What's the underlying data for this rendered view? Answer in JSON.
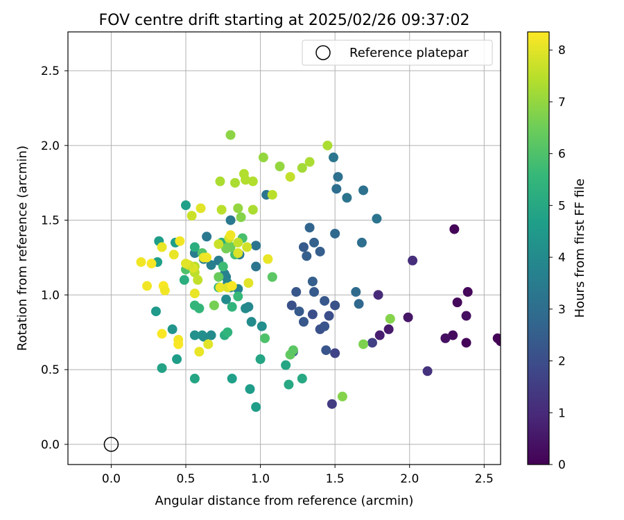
{
  "chart_data": {
    "type": "scatter",
    "title": "FOV centre drift starting at 2025/02/26 09:37:02",
    "xlabel": "Angular distance from reference (arcmin)",
    "ylabel": "Rotation from reference (arcmin)",
    "xlim": [
      -0.29,
      2.61
    ],
    "ylim": [
      -0.135,
      2.76
    ],
    "xticks": [
      "0.0",
      "0.5",
      "1.0",
      "1.5",
      "2.0",
      "2.5"
    ],
    "xtick_values": [
      0,
      0.5,
      1.0,
      1.5,
      2.0,
      2.5
    ],
    "yticks": [
      "0.0",
      "0.5",
      "1.0",
      "1.5",
      "2.0",
      "2.5"
    ],
    "ytick_values": [
      0,
      0.5,
      1.0,
      1.5,
      2.0,
      2.5
    ],
    "grid": true,
    "legend": {
      "placement": "top-right",
      "label": "Reference platepar"
    },
    "reference_point": {
      "x": 0,
      "y": 0
    },
    "colorbar": {
      "label": "Hours from first FF file",
      "colormap": "viridis",
      "range": [
        0,
        8.35
      ],
      "ticks": [
        "0",
        "1",
        "2",
        "3",
        "4",
        "5",
        "6",
        "7",
        "8"
      ],
      "tick_values": [
        0,
        1,
        2,
        3,
        4,
        5,
        6,
        7,
        8
      ]
    },
    "series": [
      {
        "columns": [
          "x",
          "y",
          "hours"
        ],
        "points": [
          [
            2.3,
            1.44,
            0.1
          ],
          [
            2.39,
            1.02,
            0.15
          ],
          [
            2.32,
            0.95,
            0.2
          ],
          [
            2.38,
            0.86,
            0.3
          ],
          [
            2.29,
            0.73,
            0.25
          ],
          [
            2.24,
            0.71,
            0.35
          ],
          [
            2.38,
            0.68,
            0.1
          ],
          [
            2.59,
            0.71,
            0.05
          ],
          [
            2.61,
            0.69,
            0.05
          ],
          [
            1.99,
            0.85,
            0.5
          ],
          [
            1.86,
            0.77,
            0.6
          ],
          [
            1.8,
            0.73,
            0.7
          ],
          [
            1.79,
            1.0,
            1.0
          ],
          [
            2.02,
            1.23,
            1.1
          ],
          [
            2.12,
            0.49,
            1.2
          ],
          [
            1.75,
            0.68,
            1.6
          ],
          [
            1.5,
            0.61,
            1.7
          ],
          [
            1.48,
            0.27,
            1.5
          ],
          [
            1.22,
            0.62,
            2.2
          ],
          [
            1.29,
            0.82,
            2.3
          ],
          [
            1.21,
            0.93,
            2.1
          ],
          [
            1.26,
            0.89,
            2.4
          ],
          [
            1.24,
            1.02,
            2.3
          ],
          [
            1.35,
            0.87,
            2.0
          ],
          [
            1.4,
            0.77,
            2.1
          ],
          [
            1.43,
            0.79,
            2.2
          ],
          [
            1.46,
            0.86,
            2.0
          ],
          [
            1.5,
            0.93,
            2.1
          ],
          [
            1.43,
            0.96,
            2.3
          ],
          [
            1.36,
            1.02,
            2.4
          ],
          [
            1.35,
            1.09,
            2.5
          ],
          [
            1.44,
            0.63,
            2.2
          ],
          [
            1.31,
            1.26,
            2.5
          ],
          [
            1.29,
            1.32,
            2.4
          ],
          [
            1.36,
            1.35,
            2.6
          ],
          [
            1.4,
            1.29,
            2.5
          ],
          [
            1.33,
            1.45,
            2.7
          ],
          [
            1.5,
            1.41,
            2.8
          ],
          [
            1.64,
            1.02,
            2.9
          ],
          [
            1.66,
            0.94,
            2.8
          ],
          [
            1.68,
            1.35,
            3.0
          ],
          [
            1.51,
            1.71,
            3.0
          ],
          [
            1.52,
            1.79,
            3.1
          ],
          [
            1.58,
            1.65,
            3.2
          ],
          [
            1.69,
            1.7,
            3.1
          ],
          [
            1.49,
            1.92,
            3.3
          ],
          [
            1.78,
            1.51,
            3.2
          ],
          [
            1.04,
            1.67,
            3.3
          ],
          [
            0.97,
            1.33,
            3.2
          ],
          [
            0.97,
            1.19,
            3.3
          ],
          [
            0.86,
            1.27,
            3.4
          ],
          [
            0.8,
            1.5,
            3.4
          ],
          [
            0.64,
            1.39,
            3.4
          ],
          [
            0.56,
            1.28,
            3.5
          ],
          [
            0.62,
            1.24,
            3.6
          ],
          [
            0.67,
            1.2,
            3.6
          ],
          [
            0.72,
            1.23,
            3.5
          ],
          [
            0.77,
            1.12,
            3.6
          ],
          [
            0.76,
            1.14,
            3.7
          ],
          [
            0.78,
            1.08,
            3.8
          ],
          [
            0.85,
            1.04,
            3.7
          ],
          [
            0.8,
            1.05,
            3.9
          ],
          [
            0.77,
            0.97,
            4.0
          ],
          [
            0.9,
            0.91,
            4.0
          ],
          [
            0.92,
            0.92,
            3.9
          ],
          [
            0.94,
            0.82,
            4.0
          ],
          [
            1.01,
            0.79,
            4.1
          ],
          [
            0.56,
            0.73,
            4.2
          ],
          [
            0.61,
            0.73,
            4.3
          ],
          [
            0.62,
            0.72,
            4.1
          ],
          [
            0.67,
            0.73,
            4.0
          ],
          [
            0.41,
            0.77,
            4.3
          ],
          [
            0.3,
            0.89,
            4.5
          ],
          [
            0.44,
            0.57,
            4.6
          ],
          [
            0.34,
            0.51,
            4.8
          ],
          [
            0.56,
            0.44,
            4.9
          ],
          [
            0.93,
            0.37,
            4.6
          ],
          [
            0.81,
            0.44,
            4.7
          ],
          [
            0.97,
            0.25,
            4.6
          ],
          [
            1.0,
            0.57,
            4.9
          ],
          [
            1.17,
            0.53,
            4.9
          ],
          [
            1.19,
            0.4,
            5.0
          ],
          [
            1.28,
            0.44,
            5.0
          ],
          [
            0.31,
            1.22,
            4.7
          ],
          [
            0.32,
            1.36,
            4.6
          ],
          [
            0.43,
            1.35,
            4.6
          ],
          [
            0.5,
            1.6,
            4.7
          ],
          [
            0.49,
            1.1,
            5.2
          ],
          [
            0.56,
            1.32,
            5.2
          ],
          [
            0.74,
            1.35,
            5.2
          ],
          [
            0.72,
            1.05,
            5.3
          ],
          [
            0.76,
            0.73,
            5.2
          ],
          [
            0.78,
            0.75,
            5.4
          ],
          [
            0.81,
            0.92,
            5.4
          ],
          [
            0.56,
            0.93,
            5.5
          ],
          [
            0.59,
            0.91,
            5.5
          ],
          [
            0.85,
            0.99,
            5.6
          ],
          [
            0.75,
            1.19,
            5.7
          ],
          [
            0.83,
            1.27,
            5.8
          ],
          [
            0.88,
            1.38,
            5.9
          ],
          [
            1.03,
            0.71,
            6.0
          ],
          [
            1.08,
            1.12,
            6.2
          ],
          [
            1.2,
            0.6,
            6.3
          ],
          [
            1.22,
            0.63,
            6.2
          ],
          [
            0.61,
            1.28,
            6.1
          ],
          [
            0.5,
            1.17,
            6.0
          ],
          [
            0.72,
            1.12,
            6.4
          ],
          [
            0.69,
            0.93,
            6.6
          ],
          [
            0.79,
            1.33,
            6.4
          ],
          [
            0.8,
            1.32,
            6.5
          ],
          [
            0.77,
            1.31,
            6.6
          ],
          [
            0.8,
            2.07,
            6.9
          ],
          [
            0.85,
            1.58,
            7.0
          ],
          [
            0.87,
            1.52,
            6.8
          ],
          [
            1.02,
            1.92,
            7.0
          ],
          [
            1.13,
            1.86,
            7.0
          ],
          [
            1.28,
            1.85,
            7.2
          ],
          [
            1.33,
            1.89,
            7.3
          ],
          [
            1.45,
            2.0,
            7.3
          ],
          [
            1.55,
            0.32,
            6.8
          ],
          [
            1.69,
            0.67,
            6.7
          ],
          [
            1.87,
            0.84,
            6.8
          ],
          [
            0.73,
            1.76,
            7.3
          ],
          [
            0.83,
            1.75,
            7.3
          ],
          [
            0.89,
            1.81,
            7.4
          ],
          [
            0.9,
            1.77,
            7.4
          ],
          [
            0.95,
            1.57,
            7.3
          ],
          [
            0.95,
            1.76,
            7.4
          ],
          [
            0.74,
            1.57,
            7.5
          ],
          [
            1.08,
            1.67,
            7.5
          ],
          [
            1.2,
            1.79,
            7.6
          ],
          [
            0.54,
            1.53,
            7.7
          ],
          [
            0.56,
            1.19,
            7.4
          ],
          [
            0.56,
            1.15,
            7.5
          ],
          [
            0.58,
            1.1,
            7.6
          ],
          [
            0.72,
            1.34,
            7.7
          ],
          [
            0.91,
            1.32,
            7.8
          ],
          [
            0.79,
            1.38,
            7.8
          ],
          [
            0.85,
            1.35,
            7.6
          ],
          [
            0.85,
            1.28,
            7.9
          ],
          [
            0.55,
            1.18,
            7.9
          ],
          [
            0.52,
            1.2,
            7.8
          ],
          [
            0.2,
            1.22,
            8.2
          ],
          [
            0.27,
            1.21,
            8.3
          ],
          [
            0.34,
            1.32,
            8.1
          ],
          [
            0.35,
            1.06,
            8.3
          ],
          [
            0.36,
            1.03,
            8.2
          ],
          [
            0.24,
            1.06,
            8.2
          ],
          [
            0.42,
            1.27,
            8.1
          ],
          [
            0.46,
            1.36,
            8.2
          ],
          [
            0.5,
            1.21,
            8.0
          ],
          [
            0.56,
            1.01,
            8.1
          ],
          [
            0.6,
            1.58,
            8.0
          ],
          [
            0.62,
            1.25,
            8.1
          ],
          [
            0.64,
            1.25,
            8.2
          ],
          [
            0.73,
            1.05,
            8.1
          ],
          [
            0.78,
            1.05,
            8.0
          ],
          [
            0.8,
            1.4,
            8.2
          ],
          [
            0.81,
            1.06,
            8.3
          ],
          [
            0.92,
            1.08,
            8.0
          ],
          [
            1.05,
            1.24,
            8.1
          ],
          [
            0.34,
            0.74,
            8.3
          ],
          [
            0.45,
            0.7,
            8.2
          ],
          [
            0.45,
            0.67,
            8.3
          ],
          [
            0.59,
            0.62,
            8.1
          ],
          [
            0.65,
            0.67,
            8.0
          ]
        ]
      }
    ]
  }
}
